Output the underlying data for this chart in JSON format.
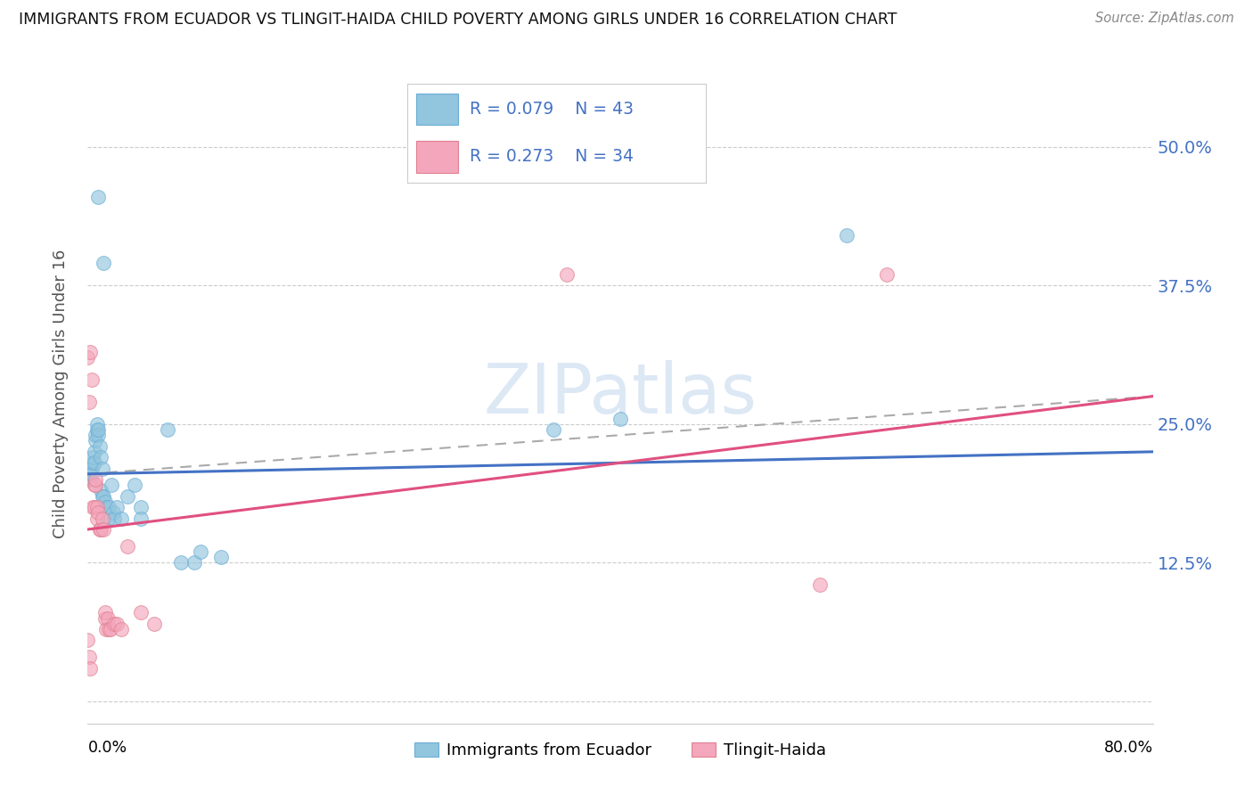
{
  "title": "IMMIGRANTS FROM ECUADOR VS TLINGIT-HAIDA CHILD POVERTY AMONG GIRLS UNDER 16 CORRELATION CHART",
  "source": "Source: ZipAtlas.com",
  "ylabel": "Child Poverty Among Girls Under 16",
  "ytick_values": [
    0.0,
    0.125,
    0.25,
    0.375,
    0.5
  ],
  "ytick_labels": [
    "",
    "12.5%",
    "25.0%",
    "37.5%",
    "50.0%"
  ],
  "xlim": [
    0.0,
    0.8
  ],
  "ylim": [
    -0.02,
    0.575
  ],
  "blue_color": "#92c5de",
  "pink_color": "#f4a6bc",
  "line_blue": "#4472c4",
  "line_pink": "#e05080",
  "line_dash_color": "#aaaaaa",
  "text_blue": "#4472c4",
  "watermark": "ZIPatlas",
  "blue_line_start": 0.205,
  "blue_line_end": 0.225,
  "pink_line_start": 0.155,
  "pink_line_end": 0.275,
  "dash_line_start": 0.205,
  "dash_line_end": 0.275,
  "ecuador_points": [
    [
      0.001,
      0.205
    ],
    [
      0.002,
      0.2
    ],
    [
      0.003,
      0.21
    ],
    [
      0.003,
      0.205
    ],
    [
      0.004,
      0.215
    ],
    [
      0.004,
      0.22
    ],
    [
      0.005,
      0.225
    ],
    [
      0.005,
      0.215
    ],
    [
      0.006,
      0.235
    ],
    [
      0.006,
      0.24
    ],
    [
      0.007,
      0.245
    ],
    [
      0.007,
      0.25
    ],
    [
      0.008,
      0.24
    ],
    [
      0.008,
      0.245
    ],
    [
      0.009,
      0.23
    ],
    [
      0.01,
      0.22
    ],
    [
      0.01,
      0.19
    ],
    [
      0.011,
      0.21
    ],
    [
      0.011,
      0.185
    ],
    [
      0.012,
      0.185
    ],
    [
      0.013,
      0.18
    ],
    [
      0.014,
      0.175
    ],
    [
      0.015,
      0.165
    ],
    [
      0.016,
      0.175
    ],
    [
      0.018,
      0.195
    ],
    [
      0.019,
      0.17
    ],
    [
      0.02,
      0.165
    ],
    [
      0.022,
      0.175
    ],
    [
      0.025,
      0.165
    ],
    [
      0.03,
      0.185
    ],
    [
      0.035,
      0.195
    ],
    [
      0.04,
      0.175
    ],
    [
      0.04,
      0.165
    ],
    [
      0.06,
      0.245
    ],
    [
      0.07,
      0.125
    ],
    [
      0.08,
      0.125
    ],
    [
      0.085,
      0.135
    ],
    [
      0.1,
      0.13
    ],
    [
      0.35,
      0.245
    ],
    [
      0.008,
      0.455
    ],
    [
      0.012,
      0.395
    ],
    [
      0.57,
      0.42
    ],
    [
      0.4,
      0.255
    ]
  ],
  "tlingit_points": [
    [
      0.0,
      0.31
    ],
    [
      0.001,
      0.27
    ],
    [
      0.002,
      0.315
    ],
    [
      0.003,
      0.29
    ],
    [
      0.004,
      0.175
    ],
    [
      0.005,
      0.175
    ],
    [
      0.005,
      0.195
    ],
    [
      0.006,
      0.195
    ],
    [
      0.006,
      0.2
    ],
    [
      0.007,
      0.175
    ],
    [
      0.007,
      0.165
    ],
    [
      0.008,
      0.17
    ],
    [
      0.009,
      0.155
    ],
    [
      0.01,
      0.155
    ],
    [
      0.011,
      0.165
    ],
    [
      0.012,
      0.155
    ],
    [
      0.013,
      0.075
    ],
    [
      0.013,
      0.08
    ],
    [
      0.014,
      0.065
    ],
    [
      0.015,
      0.075
    ],
    [
      0.016,
      0.065
    ],
    [
      0.017,
      0.065
    ],
    [
      0.02,
      0.07
    ],
    [
      0.022,
      0.07
    ],
    [
      0.025,
      0.065
    ],
    [
      0.03,
      0.14
    ],
    [
      0.04,
      0.08
    ],
    [
      0.05,
      0.07
    ],
    [
      0.0,
      0.055
    ],
    [
      0.001,
      0.04
    ],
    [
      0.002,
      0.03
    ],
    [
      0.55,
      0.105
    ],
    [
      0.6,
      0.385
    ],
    [
      0.36,
      0.385
    ]
  ]
}
